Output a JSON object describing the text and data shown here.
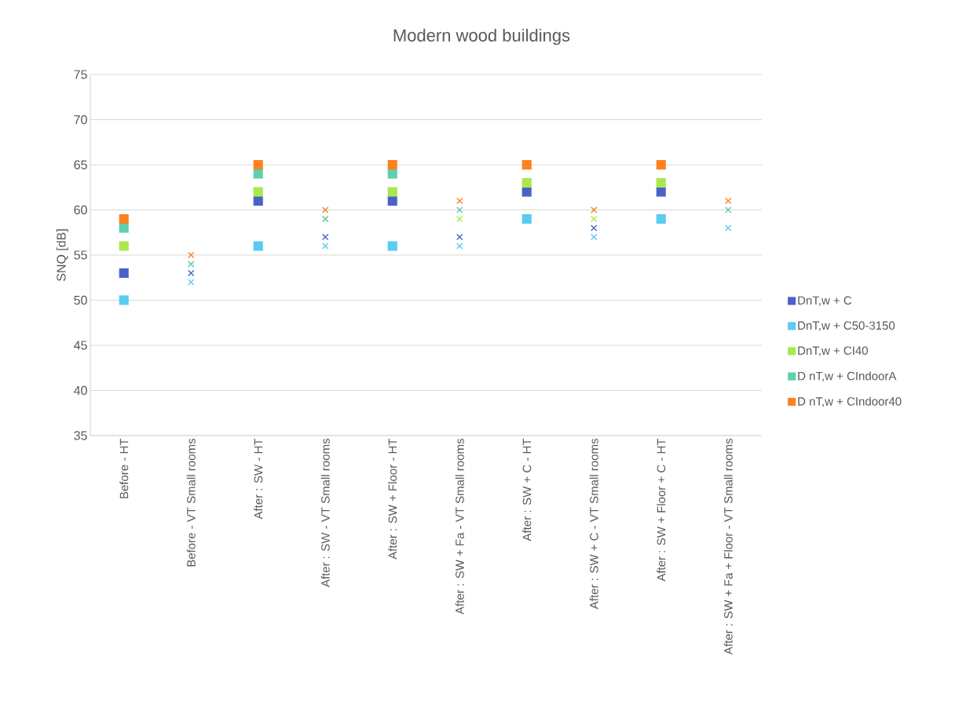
{
  "chart_data": {
    "type": "scatter",
    "title": "Modern wood buildings",
    "ylabel": "SNQ [dB]",
    "categories": [
      "Before - HT",
      "Before - VT Small rooms",
      "After : SW - HT",
      "After : SW - VT Small rooms",
      "After : SW + Floor - HT",
      "After : SW + Fa - VT Small rooms",
      "After : SW + C - HT",
      "After : SW + C - VT Small rooms",
      "After : SW + Floor + C - HT",
      "After : SW + Fa + Floor - VT Small rooms"
    ],
    "ylim": [
      35,
      75
    ],
    "yticks": [
      35,
      40,
      45,
      50,
      55,
      60,
      65,
      70,
      75
    ],
    "grid": "y",
    "legend": "right",
    "series": [
      {
        "name": "DnT,w + C",
        "color": "#4a62c8",
        "marker": "square",
        "values": [
          53,
          null,
          61,
          null,
          61,
          null,
          62,
          null,
          62,
          null
        ]
      },
      {
        "name": "DnT,w + C50-3150",
        "color": "#5bcbf1",
        "marker": "square",
        "values": [
          50,
          null,
          56,
          null,
          56,
          null,
          59,
          null,
          59,
          null
        ]
      },
      {
        "name": "DnT,w + CI40",
        "color": "#a8e94e",
        "marker": "square",
        "values": [
          56,
          null,
          62,
          null,
          62,
          null,
          63,
          null,
          63,
          null
        ]
      },
      {
        "name": "D nT,w + CIndoorA",
        "color": "#5ecfb0",
        "marker": "square",
        "values": [
          58,
          null,
          64,
          null,
          64,
          null,
          null,
          null,
          null,
          null
        ]
      },
      {
        "name": "D nT,w + CIndoor40",
        "color": "#fd8120",
        "marker": "square",
        "values": [
          59,
          null,
          65,
          null,
          65,
          null,
          65,
          null,
          65,
          null
        ]
      },
      {
        "color": "#4a62c8",
        "marker": "cross",
        "values": [
          null,
          53,
          null,
          57,
          null,
          57,
          null,
          58,
          null,
          null
        ]
      },
      {
        "color": "#5bcbf1",
        "marker": "cross",
        "values": [
          null,
          52,
          null,
          56,
          null,
          56,
          null,
          57,
          null,
          58
        ]
      },
      {
        "color": "#a8e94e",
        "marker": "cross",
        "values": [
          null,
          54,
          null,
          59,
          null,
          59,
          null,
          59,
          null,
          null
        ]
      },
      {
        "color": "#5ecfb0",
        "marker": "cross",
        "values": [
          null,
          54,
          null,
          59,
          null,
          60,
          null,
          null,
          null,
          60
        ]
      },
      {
        "color": "#fd8120",
        "marker": "cross",
        "values": [
          null,
          55,
          null,
          60,
          null,
          61,
          null,
          60,
          null,
          61
        ]
      }
    ]
  }
}
